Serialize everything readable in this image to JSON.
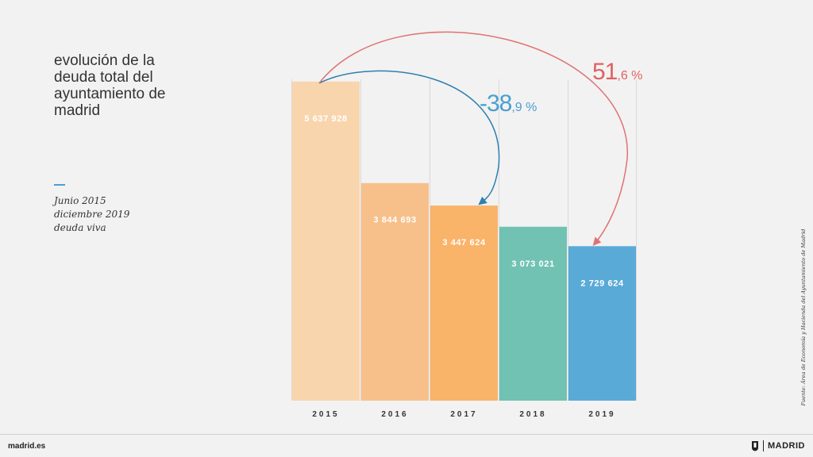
{
  "title_lines": [
    "evolución de la",
    "deuda total del",
    "ayuntamiento de",
    "madrid"
  ],
  "subtitle_lines": [
    "Junio 2015",
    "diciembre 2019",
    "deuda viva"
  ],
  "source": "Fuente: Área de Economía y Hacienda del Ayuntamiento de Madrid",
  "footer": {
    "site": "madrid.es",
    "brand": "MADRID"
  },
  "colors": {
    "bars": [
      "#f9d5ad",
      "#f7c08a",
      "#f9b469",
      "#72c2b4",
      "#5aaad8"
    ],
    "arrow_blue": "#2f7fb0",
    "arrow_red": "#e07272",
    "blue_text": "#4a9fd0",
    "red_text": "#e06060"
  },
  "chart_data": {
    "type": "bar",
    "title": "evolución de la deuda total del ayuntamiento de madrid",
    "categories": [
      "2015",
      "2016",
      "2017",
      "2018",
      "2019"
    ],
    "values": [
      5637928,
      3844693,
      3447624,
      3073021,
      2729624
    ],
    "value_labels": [
      "5 637 928",
      "3 844 693",
      "3 447 624",
      "3 073 021",
      "2 729 624"
    ],
    "ylim": [
      0,
      6000000
    ],
    "annotations": [
      {
        "from": "2015",
        "to": "2017",
        "label_main": "-38",
        "label_rest": ",9 %",
        "color": "blue"
      },
      {
        "from": "2015",
        "to": "2019",
        "label_main": "51",
        "label_rest": ",6 %",
        "color": "red"
      }
    ]
  }
}
